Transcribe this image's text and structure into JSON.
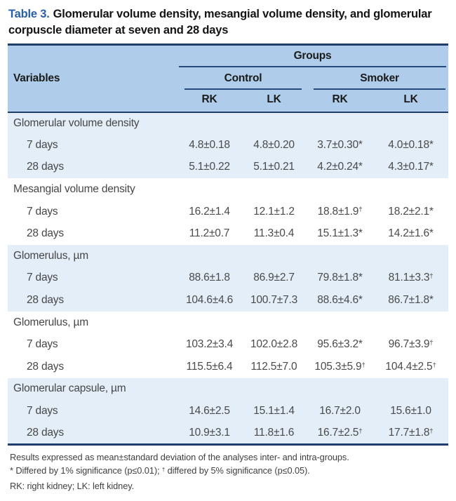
{
  "title": {
    "label": "Table 3.",
    "text": "Glomerular volume density, mesangial volume density, and glomerular corpuscle diameter at seven and 28 days"
  },
  "table": {
    "header": {
      "variables": "Variables",
      "groups": "Groups",
      "subgroups": [
        "Control",
        "Smoker"
      ],
      "columns": [
        "RK",
        "LK",
        "RK",
        "LK"
      ]
    },
    "sections": [
      {
        "label": "Glomerular volume density",
        "shaded": true,
        "rows": [
          {
            "label": "7 days",
            "values": [
              "4.8±0.18",
              "4.8±0.20",
              "3.7±0.30*",
              "4.0±0.18*"
            ]
          },
          {
            "label": "28 days",
            "values": [
              "5.1±0.22",
              "5.1±0.21",
              "4.2±0.24*",
              "4.3±0.17*"
            ]
          }
        ]
      },
      {
        "label": "Mesangial volume density",
        "shaded": false,
        "rows": [
          {
            "label": "7 days",
            "values": [
              "16.2±1.4",
              "12.1±1.2",
              "18.8±1.9†",
              "18.2±2.1*"
            ]
          },
          {
            "label": "28 days",
            "values": [
              "11.2±0.7",
              "11.3±0.4",
              "15.1±1.3*",
              "14.2±1.6*"
            ]
          }
        ]
      },
      {
        "label": "Glomerulus, µm",
        "shaded": true,
        "rows": [
          {
            "label": "7 days",
            "values": [
              "88.6±1.8",
              "86.9±2.7",
              "79.8±1.8*",
              "81.1±3.3†"
            ]
          },
          {
            "label": "28 days",
            "values": [
              "104.6±4.6",
              "100.7±7.3",
              "88.6±4.6*",
              "86.7±1.8*"
            ]
          }
        ]
      },
      {
        "label": "Glomerulus, µm",
        "shaded": false,
        "rows": [
          {
            "label": "7 days",
            "values": [
              "103.2±3.4",
              "102.0±2.8",
              "95.6±3.2*",
              "96.7±3.9†"
            ]
          },
          {
            "label": "28 days",
            "values": [
              "115.5±6.4",
              "112.5±7.0",
              "105.3±5.9†",
              "104.4±2.5†"
            ]
          }
        ]
      },
      {
        "label": "Glomerular capsule, µm",
        "shaded": true,
        "rows": [
          {
            "label": "7 days",
            "values": [
              "14.6±2.5",
              "15.1±1.4",
              "16.7±2.0",
              "15.6±1.0"
            ]
          },
          {
            "label": "28 days",
            "values": [
              "10.9±3.1",
              "11.8±1.6",
              "16.7±2.5†",
              "17.7±1.8†"
            ]
          }
        ]
      }
    ]
  },
  "footnotes": [
    "Results expressed as mean±standard deviation of the analyses inter- and intra-groups.",
    "* Differed by 1% significance (p≤0.01); † differed by 5% significance (p≤0.05).",
    "RK: right kidney; LK: left kidney."
  ],
  "colors": {
    "accent_blue": "#2a5fa8",
    "rule_navy": "#1e3e6e",
    "header_bg": "#afcdea",
    "band_bg": "#e3eef8"
  }
}
